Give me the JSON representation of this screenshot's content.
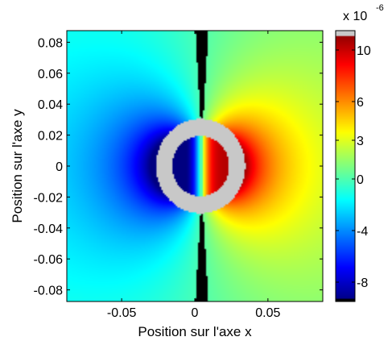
{
  "chart_data": {
    "type": "heatmap",
    "title": "",
    "xlabel": "Position sur l'axe x",
    "ylabel": "Position sur l'axe y",
    "xlim": [
      -0.0875,
      0.0875
    ],
    "ylim": [
      -0.0875,
      0.0875
    ],
    "x_ticks": [
      {
        "value": -0.05,
        "label": "-0.05"
      },
      {
        "value": 0,
        "label": "0"
      },
      {
        "value": 0.05,
        "label": "0.05"
      }
    ],
    "y_ticks": [
      {
        "value": 0.08,
        "label": "0.08"
      },
      {
        "value": 0.06,
        "label": "0.06"
      },
      {
        "value": 0.04,
        "label": "0.04"
      },
      {
        "value": 0.02,
        "label": "0.02"
      },
      {
        "value": 0,
        "label": "0"
      },
      {
        "value": -0.02,
        "label": "-0.02"
      },
      {
        "value": -0.04,
        "label": "-0.04"
      },
      {
        "value": -0.06,
        "label": "-0.06"
      },
      {
        "value": -0.08,
        "label": "-0.08"
      }
    ],
    "field": {
      "description_kind": "dipole",
      "center": [
        0.004,
        0.0
      ],
      "ring_inner_radius": 0.0195,
      "ring_outer_radius": 0.0305,
      "positive_side": "right",
      "negative_side": "left"
    },
    "colorbar": {
      "colormap": "jet",
      "range": [
        -9.5,
        11.5
      ],
      "multiplier_base": "x 10",
      "multiplier_exponent": "-6",
      "ticks": [
        {
          "value": 10,
          "label": "10"
        },
        {
          "value": 6,
          "label": "6"
        },
        {
          "value": 3,
          "label": "3"
        },
        {
          "value": 0,
          "label": "0"
        },
        {
          "value": -4,
          "label": "-4"
        },
        {
          "value": -8,
          "label": "-8"
        }
      ]
    },
    "grid": false,
    "legend": "none"
  }
}
